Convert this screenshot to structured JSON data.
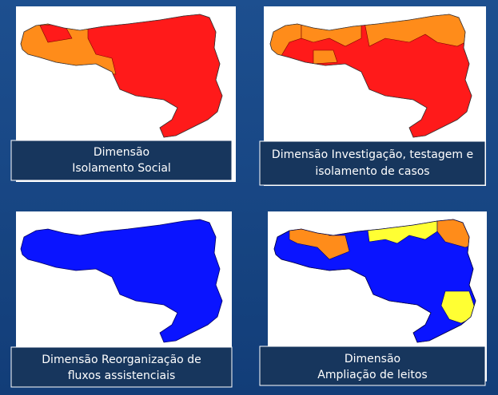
{
  "panels": [
    {
      "caption_lines": [
        "Dimensão",
        "Isolamento Social"
      ]
    },
    {
      "caption_lines": [
        "Dimensão Investigação, testagem e",
        "isolamento de casos"
      ]
    },
    {
      "caption_lines": [
        "Dimensão Reorganização de",
        "fluxos assistenciais"
      ]
    },
    {
      "caption_lines": [
        "Dimensão",
        "Ampliação de leitos"
      ]
    }
  ]
}
